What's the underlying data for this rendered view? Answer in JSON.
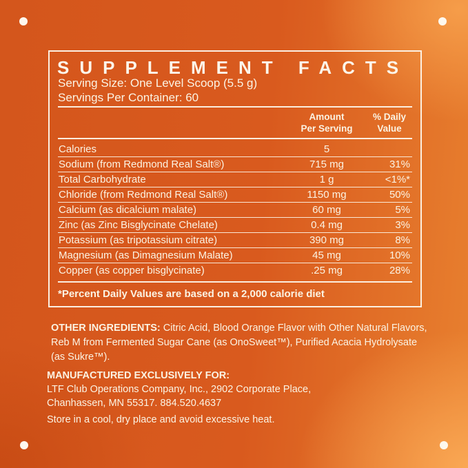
{
  "colors": {
    "background_base": "#D8591E",
    "background_highlight": "#F5A052",
    "background_shadow": "#C84F16",
    "text_cream": "#FBF3E3",
    "rule_white": "#FDF6EA"
  },
  "panel": {
    "title": "SUPPLEMENT FACTS",
    "serving_size": "Serving Size: One Level Scoop (5.5 g)",
    "servings_per_container": "Servings Per Container: 60",
    "amount_header": "Amount\nPer Serving",
    "dv_header": "% Daily\nValue",
    "rows": [
      {
        "name": "Calories",
        "amount": "5",
        "dv": ""
      },
      {
        "name": "Sodium (from Redmond Real Salt®)",
        "amount": "715 mg",
        "dv": "31%"
      },
      {
        "name": "Total Carbohydrate",
        "amount": "1 g",
        "dv": "<1%*"
      },
      {
        "name": "Chloride (from Redmond Real Salt®)",
        "amount": "1150 mg",
        "dv": "50%"
      },
      {
        "name": "Calcium (as dicalcium malate)",
        "amount": "60 mg",
        "dv": "5%"
      },
      {
        "name": "Zinc (as Zinc Bisglycinate Chelate)",
        "amount": "0.4 mg",
        "dv": "3%"
      },
      {
        "name": "Potassium (as tripotassium citrate)",
        "amount": "390 mg",
        "dv": "8%"
      },
      {
        "name": "Magnesium (as Dimagnesium Malate)",
        "amount": "45 mg",
        "dv": "10%"
      },
      {
        "name": "Copper (as copper bisglycinate)",
        "amount": ".25 mg",
        "dv": "28%"
      }
    ],
    "footnote": "*Percent Daily Values are based on a 2,000 calorie diet"
  },
  "other_ingredients": {
    "label": "OTHER INGREDIENTS:",
    "text": "Citric Acid, Blood Orange Flavor with Other Natural Flavors, Reb M from Fermented Sugar Cane (as OnoSweet™), Purified Acacia Hydrolysate (as Sukre™)."
  },
  "manufacturer": {
    "label": "MANUFACTURED EXCLUSIVELY FOR:",
    "address": "LTF Club Operations Company, Inc., 2902 Corporate Place,\nChanhassen, MN 55317. 884.520.4637"
  },
  "storage_note": "Store in a cool, dry place and avoid excessive heat."
}
